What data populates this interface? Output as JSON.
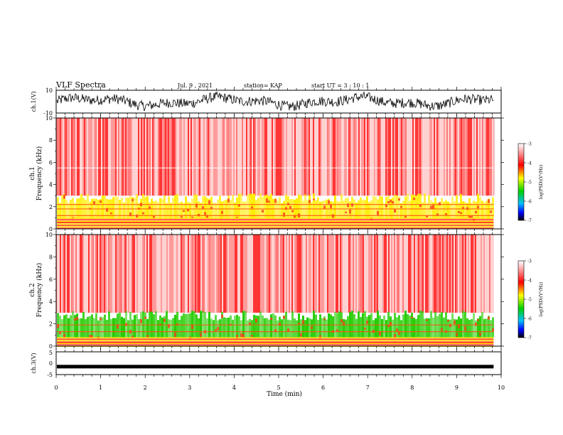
{
  "header": {
    "title": "VLF Spectra",
    "date": "Jul. 9 , 2021",
    "station": "station= KAP",
    "start": "start UT = 3 : 10 : 1"
  },
  "chart_data": [
    {
      "type": "line",
      "panel": "ch1-waveform",
      "ylabel": "ch.1(V)",
      "ylim": [
        -10,
        10
      ],
      "y_ticks": [
        "10",
        "-10"
      ],
      "x_range_min": [
        0,
        9.83
      ],
      "trace_color": "#000000"
    },
    {
      "type": "heatmap",
      "panel": "ch1-spectrogram",
      "ylabel_line1": "ch.1",
      "ylabel_line2": "Frequency (kHz)",
      "ylim": [
        0,
        10
      ],
      "y_ticks": [
        "0",
        "2",
        "4",
        "6",
        "8",
        "10"
      ],
      "x_range_min": [
        0,
        9.83
      ],
      "colorbar": {
        "label": "log(PSD)(V²/Hz)",
        "range": [
          -7,
          -3
        ],
        "ticks": [
          "-3",
          "-4",
          "-5",
          "-6",
          "-7"
        ]
      },
      "bands": [
        {
          "freq_khz": [
            0,
            1.0
          ],
          "level": "yellow-red striped"
        },
        {
          "freq_khz": [
            1.0,
            3.0
          ],
          "level": "yellow"
        },
        {
          "freq_khz": [
            3.0,
            10.0
          ],
          "level": "red-white"
        }
      ],
      "line_features_khz": [
        0.3,
        0.6,
        1.2,
        1.8,
        2.2,
        5.5
      ]
    },
    {
      "type": "heatmap",
      "panel": "ch2-spectrogram",
      "ylabel_line1": "ch.2",
      "ylabel_line2": "Frequency (kHz)",
      "ylim": [
        0,
        10
      ],
      "y_ticks": [
        "0",
        "2",
        "4",
        "6",
        "8",
        "10"
      ],
      "x_range_min": [
        0,
        9.83
      ],
      "colorbar": {
        "label": "log(PSD)(V²/Hz)",
        "range": [
          -7,
          -3
        ],
        "ticks": [
          "-3",
          "-4",
          "-5",
          "-6",
          "-7"
        ]
      },
      "bands": [
        {
          "freq_khz": [
            0,
            0.8
          ],
          "level": "yellow-red striped"
        },
        {
          "freq_khz": [
            0.8,
            3.0
          ],
          "level": "green"
        },
        {
          "freq_khz": [
            3.0,
            10.0
          ],
          "level": "red-white"
        }
      ],
      "line_features_khz": [
        0.3,
        0.6,
        1.3,
        1.9
      ]
    },
    {
      "type": "line",
      "panel": "ch3-waveform",
      "ylabel": "ch.3(V)",
      "ylim": [
        -5,
        5
      ],
      "y_ticks": [
        "5",
        "0",
        "-5"
      ],
      "x_range_min": [
        0,
        9.83
      ],
      "level_v": -1.5,
      "trace_color": "#000000"
    }
  ],
  "x_axis": {
    "label": "Time (min)",
    "range": [
      0,
      10
    ],
    "ticks": [
      "0",
      "1",
      "2",
      "3",
      "4",
      "5",
      "6",
      "7",
      "8",
      "9",
      "10"
    ]
  },
  "colors": {
    "very_high": "#ff0000",
    "high": "#ffff00",
    "mid": "#00cc00",
    "low": "#0000ff",
    "lowest": "#000000",
    "background": "#ffffff"
  }
}
